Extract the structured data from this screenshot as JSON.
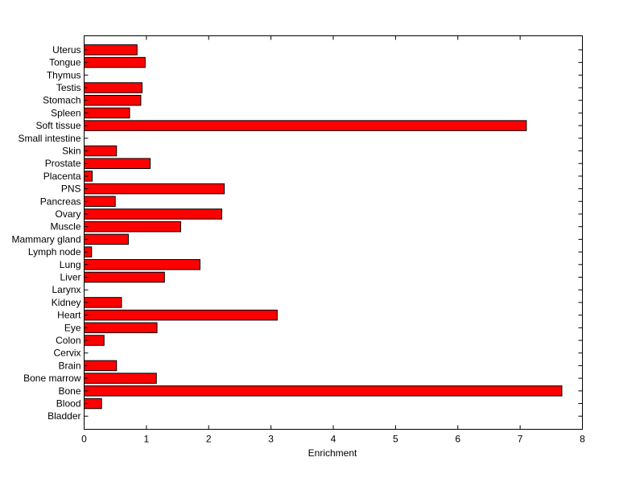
{
  "chart_data": {
    "type": "bar",
    "orientation": "horizontal",
    "categories": [
      "Bladder",
      "Blood",
      "Bone",
      "Bone marrow",
      "Brain",
      "Cervix",
      "Colon",
      "Eye",
      "Heart",
      "Kidney",
      "Larynx",
      "Liver",
      "Lung",
      "Lymph node",
      "Mammary gland",
      "Muscle",
      "Ovary",
      "Pancreas",
      "PNS",
      "Placenta",
      "Prostate",
      "Skin",
      "Small intestine",
      "Soft tissue",
      "Spleen",
      "Stomach",
      "Testis",
      "Thymus",
      "Tongue",
      "Uterus"
    ],
    "values": [
      0,
      0.28,
      7.67,
      1.16,
      0.52,
      0,
      0.32,
      1.17,
      3.1,
      0.6,
      0,
      1.29,
      1.86,
      0.12,
      0.71,
      1.55,
      2.21,
      0.5,
      2.25,
      0.13,
      1.06,
      0.52,
      0,
      7.1,
      0.73,
      0.91,
      0.93,
      0,
      0.98,
      0.85
    ],
    "title": "",
    "xlabel": "Enrichment",
    "ylabel": "",
    "xlim": [
      0,
      8
    ],
    "xticks": [
      0,
      1,
      2,
      3,
      4,
      5,
      6,
      7,
      8
    ],
    "bar_color": "#ff0000",
    "bar_edge_color": "#000000",
    "grid": false,
    "legend": "none"
  }
}
